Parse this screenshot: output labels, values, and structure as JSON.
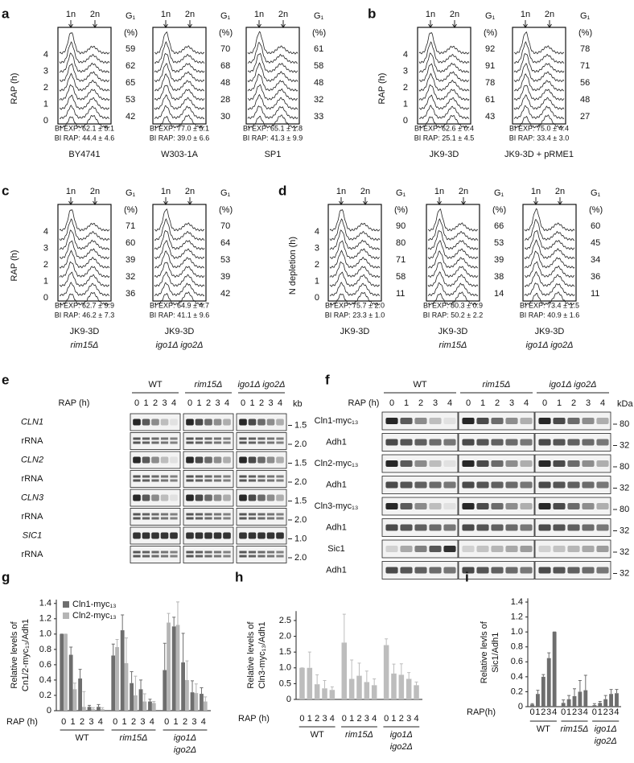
{
  "flow_labels": {
    "n1": "1n",
    "n2": "2n",
    "g1": "G₁",
    "pct": "(%)",
    "hours": [
      4,
      3,
      2,
      1,
      0
    ]
  },
  "flow": [
    {
      "letter": "a",
      "ylabel": "RAP (h)",
      "strains": [
        {
          "name": [
            "BY4741"
          ],
          "g1": [
            59,
            62,
            65,
            53,
            42
          ],
          "bi_exp": "BI EXP: 62.1 ± 5.1",
          "bi_rap": "BI RAP: 44.4 ± 4.6"
        },
        {
          "name": [
            "W303-1A"
          ],
          "g1": [
            70,
            68,
            48,
            28,
            30
          ],
          "bi_exp": "BI EXP: 77.0 ± 5.1",
          "bi_rap": "BI RAP: 39.0 ± 6.6"
        },
        {
          "name": [
            "SP1"
          ],
          "g1": [
            61,
            58,
            48,
            32,
            33
          ],
          "bi_exp": "BI EXP: 65.1 ± 1.8",
          "bi_rap": "BI RAP: 41.3 ± 9.9"
        }
      ]
    },
    {
      "letter": "b",
      "ylabel": "RAP (h)",
      "strains": [
        {
          "name": [
            "JK9-3D"
          ],
          "g1": [
            92,
            91,
            78,
            61,
            43
          ],
          "bi_exp": "BI EXP: 62.6 ± 0.4",
          "bi_rap": "BI RAP: 25.1 ± 4.5"
        },
        {
          "name": [
            "JK9-3D + pRME1"
          ],
          "g1": [
            78,
            71,
            56,
            48,
            27
          ],
          "bi_exp": "BI EXP: 75.0 ± 4.4",
          "bi_rap": "BI RAP: 33.4 ± 3.0"
        }
      ]
    },
    {
      "letter": "c",
      "ylabel": "RAP (h)",
      "strains": [
        {
          "name": [
            "JK9-3D",
            "rim15Δ"
          ],
          "g1": [
            71,
            60,
            39,
            32,
            36
          ],
          "bi_exp": "BI EXP: 62.7 ± 9.9",
          "bi_rap": "BI RAP: 46.2 ± 7.3"
        },
        {
          "name": [
            "JK9-3D",
            "igo1Δ igo2Δ"
          ],
          "g1": [
            70,
            64,
            53,
            39,
            42
          ],
          "bi_exp": "BI EXP: 64.9 ± 4.7",
          "bi_rap": "BI RAP: 41.1 ± 9.6"
        }
      ]
    },
    {
      "letter": "d",
      "ylabel": "N depletion (h)",
      "strains": [
        {
          "name": [
            "JK9-3D"
          ],
          "g1": [
            90,
            80,
            71,
            58,
            11
          ],
          "bi_exp": "BI EXP: 75.7 ± 2.0",
          "bi_rap": "BI RAP: 23.3 ± 1.0"
        },
        {
          "name": [
            "JK9-3D",
            "rim15Δ"
          ],
          "g1": [
            66,
            53,
            39,
            38,
            14
          ],
          "bi_exp": "BI EXP: 80.3 ± 0.9",
          "bi_rap": "BI RAP: 50.2 ± 2.2"
        },
        {
          "name": [
            "JK9-3D",
            "igo1Δ igo2Δ"
          ],
          "g1": [
            60,
            45,
            34,
            36,
            11
          ],
          "bi_exp": "BI EXP: 73.4 ± 1.5",
          "bi_rap": "BI RAP: 40.9 ± 1.6"
        }
      ]
    }
  ],
  "blots": [
    {
      "letter": "e",
      "groups": [
        "WT",
        "rim15Δ",
        "igo1Δ igo2Δ"
      ],
      "xlabel": "RAP (h)",
      "lanes": [
        0,
        1,
        2,
        3,
        4
      ],
      "unit": "kb",
      "rows": [
        {
          "label": "CLN1",
          "size": "1.5"
        },
        {
          "label": "rRNA",
          "size": "2.0"
        },
        {
          "label": "CLN2",
          "size": "1.5"
        },
        {
          "label": "rRNA",
          "size": "2.0"
        },
        {
          "label": "CLN3",
          "size": "1.5"
        },
        {
          "label": "rRNA",
          "size": "2.0"
        },
        {
          "label": "SIC1",
          "size": "1.0"
        },
        {
          "label": "rRNA",
          "size": "2.0"
        }
      ]
    },
    {
      "letter": "f",
      "groups": [
        "WT",
        "rim15Δ",
        "igo1Δ igo2Δ"
      ],
      "xlabel": "RAP (h)",
      "lanes": [
        0,
        1,
        2,
        3,
        4
      ],
      "unit": "kDa",
      "rows": [
        {
          "label": "Cln1-myc₁₃",
          "size": 80
        },
        {
          "label": "Adh1",
          "size": 32
        },
        {
          "label": "Cln2-myc₁₃",
          "size": 80
        },
        {
          "label": "Adh1",
          "size": 32
        },
        {
          "label": "Cln3-myc₁₃",
          "size": 80
        },
        {
          "label": "Adh1",
          "size": 32
        },
        {
          "label": "Sic1",
          "size": 32
        },
        {
          "label": "Adh1",
          "size": 32
        }
      ]
    }
  ],
  "chart_data": [
    {
      "type": "bar",
      "letter": "g",
      "ylabel": [
        "Relative levels of",
        "Cn1/2-myc₁₃/Adh1"
      ],
      "xlabel": "RAP (h)",
      "categories": [
        "0",
        "1",
        "2",
        "3",
        "4",
        "0",
        "1",
        "2",
        "3",
        "4",
        "0",
        "1",
        "2",
        "3",
        "4"
      ],
      "groups": [
        [
          "WT"
        ],
        [
          "rim15Δ"
        ],
        [
          "igo1Δ",
          "igo2Δ"
        ]
      ],
      "ylim": [
        0,
        1.45
      ],
      "yticks": [
        0,
        0.2,
        0.4,
        0.6,
        0.8,
        {
          "value": 1,
          "label": "1.0"
        },
        1.2,
        1.4
      ],
      "legend": "top-left",
      "series": [
        {
          "name": "Cln1-myc₁₃",
          "color": "#6e6e6e",
          "values": [
            1.0,
            0.73,
            0.42,
            0.05,
            0.05,
            0.72,
            1.05,
            0.36,
            0.28,
            0.12,
            0.53,
            1.1,
            0.63,
            0.24,
            0.22
          ],
          "errors": [
            0,
            0.1,
            0.12,
            0.02,
            0.03,
            0.15,
            0.2,
            0.15,
            0.12,
            0.03,
            0.35,
            0.12,
            0.38,
            0.15,
            0.08
          ]
        },
        {
          "name": "Cln2-myc₁₃",
          "color": "#b5b5b5",
          "values": [
            1.0,
            0.28,
            0.05,
            0.02,
            0.02,
            0.83,
            0.62,
            0.2,
            0.12,
            0.1,
            1.15,
            1.12,
            0.4,
            0.23,
            0.12
          ],
          "errors": [
            0,
            0.08,
            0.2,
            0.02,
            0.02,
            0.1,
            0.33,
            0.25,
            0.1,
            0.02,
            0.12,
            0.3,
            0.25,
            0.12,
            0.06
          ]
        }
      ]
    },
    {
      "type": "bar",
      "letter": "h",
      "ylabel": [
        "Relative levels of",
        "Cln3-myc₁₃/Adh1"
      ],
      "xlabel": "RAP (h)",
      "categories": [
        "0",
        "1",
        "2",
        "3",
        "4",
        "0",
        "1",
        "2",
        "3",
        "4",
        "0",
        "1",
        "2",
        "3",
        "4"
      ],
      "groups": [
        [
          "WT"
        ],
        [
          "rim15Δ"
        ],
        [
          "igo1Δ",
          "igo2Δ"
        ]
      ],
      "ylim": [
        0,
        2.8
      ],
      "yticks": [
        0,
        0.5,
        {
          "value": 1,
          "label": "1.0"
        },
        1.5,
        {
          "value": 2,
          "label": "2.0"
        },
        2.5
      ],
      "series": [
        {
          "color": "#bdbdbd",
          "values": [
            1.0,
            1.0,
            0.48,
            0.35,
            0.3,
            1.8,
            0.65,
            0.75,
            0.55,
            0.45,
            1.72,
            0.82,
            0.78,
            0.65,
            0.45
          ],
          "errors": [
            0,
            0.5,
            0.3,
            0.25,
            0.1,
            0.9,
            0.6,
            0.4,
            0.35,
            0.2,
            0.2,
            0.3,
            0.35,
            0.2,
            0.1
          ]
        }
      ]
    },
    {
      "type": "bar",
      "letter": "i",
      "ylabel": [
        "Relative levls of",
        "Sic1/Adh1"
      ],
      "xlabel": "RAP(h)",
      "categories": [
        "0",
        "1",
        "2",
        "3",
        "4",
        "0",
        "1",
        "2",
        "3",
        "4",
        "0",
        "1",
        "2",
        "3",
        "4"
      ],
      "groups": [
        [
          "WT"
        ],
        [
          "rim15Δ"
        ],
        [
          "igo1Δ",
          "igo2Δ"
        ]
      ],
      "ylim": [
        0,
        1.45
      ],
      "yticks": [
        0,
        0.2,
        0.4,
        0.6,
        0.8,
        {
          "value": 1,
          "label": "1.0"
        },
        1.2,
        1.4
      ],
      "series": [
        {
          "color": "#6e6e6e",
          "values": [
            0.03,
            0.17,
            0.4,
            0.65,
            1.0,
            0.05,
            0.1,
            0.14,
            0.2,
            0.22,
            0.02,
            0.05,
            0.1,
            0.17,
            0.18
          ],
          "errors": [
            0.01,
            0.05,
            0.03,
            0.07,
            0,
            0.04,
            0.05,
            0.1,
            0.15,
            0.2,
            0.02,
            0.02,
            0.05,
            0.06,
            0.05
          ]
        }
      ]
    }
  ]
}
